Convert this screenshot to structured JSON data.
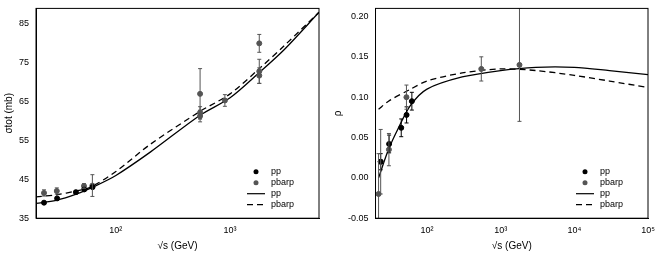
{
  "chart_data": [
    {
      "type": "scatter",
      "x_label": "√s (GeV)",
      "y_label": "σtot (mb)",
      "log": "x",
      "grid": false,
      "legend": "lower right",
      "xlim": [
        20,
        6000
      ],
      "xticks": [
        {
          "value": 100,
          "label": "10²"
        },
        {
          "value": 1000,
          "label": "10³"
        }
      ],
      "ylim": [
        35,
        89
      ],
      "yticks": [
        35,
        45,
        55,
        65,
        75,
        85
      ],
      "series": [
        {
          "name": "pp",
          "type": "scatter",
          "marker": "circle",
          "color": "#000000",
          "x": [
            23.5,
            30.6,
            44.7,
            52.8,
            62.5
          ],
          "values": [
            39.0,
            40.1,
            41.7,
            42.4,
            43.0
          ],
          "errors": [
            0.3,
            0.3,
            0.4,
            0.4,
            0.4
          ]
        },
        {
          "name": "pbarp",
          "type": "scatter",
          "marker": "circle",
          "color": "#555555",
          "x": [
            23.5,
            30.4,
            52.6,
            62.3,
            546,
            546,
            546,
            900,
            1800,
            1800,
            1800
          ],
          "values": [
            41.5,
            42.0,
            43.3,
            43.4,
            61.3,
            62.2,
            67.0,
            65.3,
            72.8,
            80.0,
            71.7
          ],
          "errors": [
            0.8,
            0.8,
            0.6,
            2.8,
            1.5,
            1.5,
            6.5,
            1.5,
            3.1,
            2.3,
            2.0
          ]
        },
        {
          "name": "pp",
          "type": "line",
          "line_style": "solid",
          "color": "#000000",
          "x": [
            20,
            30,
            45,
            65,
            100,
            200,
            546,
            1000,
            1800,
            3000,
            6000
          ],
          "values": [
            38.8,
            39.6,
            41.2,
            43.2,
            46.0,
            52.0,
            61.5,
            66.0,
            72.5,
            78.5,
            88.0
          ]
        },
        {
          "name": "pbarp",
          "type": "line",
          "line_style": "dashed",
          "color": "#000000",
          "x": [
            20,
            30,
            45,
            60,
            100,
            200,
            546,
            1000,
            1800,
            3000,
            6000
          ],
          "values": [
            40.5,
            41.0,
            42.0,
            43.0,
            47.0,
            54.0,
            62.5,
            67.0,
            73.5,
            79.5,
            88.0
          ]
        }
      ]
    },
    {
      "type": "scatter",
      "x_label": "√s (GeV)",
      "y_label": "ρ",
      "log": "x",
      "grid": false,
      "legend": "lower right",
      "xlim": [
        20,
        100000
      ],
      "xticks": [
        {
          "value": 100,
          "label": "10²"
        },
        {
          "value": 1000,
          "label": "10³"
        },
        {
          "value": 10000,
          "label": "10⁴"
        },
        {
          "value": 100000,
          "label": "10⁵"
        }
      ],
      "ylim": [
        -0.05,
        0.21
      ],
      "yticks": [
        -0.05,
        {
          "value": 0,
          "label": "0.00"
        },
        0.05,
        {
          "value": 0.1,
          "label": "0.10"
        },
        0.15,
        {
          "value": 0.2,
          "label": "0.20"
        }
      ],
      "series": [
        {
          "name": "pp",
          "type": "scatter",
          "marker": "circle",
          "color": "#000000",
          "x": [
            23.5,
            30.6,
            44.7,
            52.8,
            62.3
          ],
          "values": [
            0.02,
            0.042,
            0.062,
            0.078,
            0.095
          ],
          "errors": [
            0.01,
            0.011,
            0.011,
            0.01,
            0.011
          ]
        },
        {
          "name": "pbarp",
          "type": "scatter",
          "marker": "circle",
          "color": "#555555",
          "x": [
            22.0,
            23.5,
            30.4,
            52.6,
            546,
            1800
          ],
          "values": [
            -0.02,
            0.02,
            0.035,
            0.1,
            0.135,
            0.14
          ],
          "errors": [
            0.05,
            0.04,
            0.02,
            0.015,
            0.015,
            0.07
          ]
        },
        {
          "name": "pp",
          "type": "line",
          "line_style": "solid",
          "color": "#000000",
          "x": [
            22,
            30,
            40,
            60,
            100,
            300,
            1000,
            3000,
            10000,
            30000,
            100000
          ],
          "values": [
            0.0,
            0.035,
            0.06,
            0.09,
            0.11,
            0.125,
            0.133,
            0.137,
            0.137,
            0.133,
            0.128
          ]
        },
        {
          "name": "pbarp",
          "type": "line",
          "line_style": "dashed",
          "color": "#000000",
          "x": [
            22,
            30,
            60,
            100,
            300,
            1000,
            3000,
            10000,
            30000,
            100000
          ],
          "values": [
            0.085,
            0.095,
            0.11,
            0.12,
            0.13,
            0.135,
            0.133,
            0.127,
            0.12,
            0.112
          ]
        }
      ]
    }
  ]
}
